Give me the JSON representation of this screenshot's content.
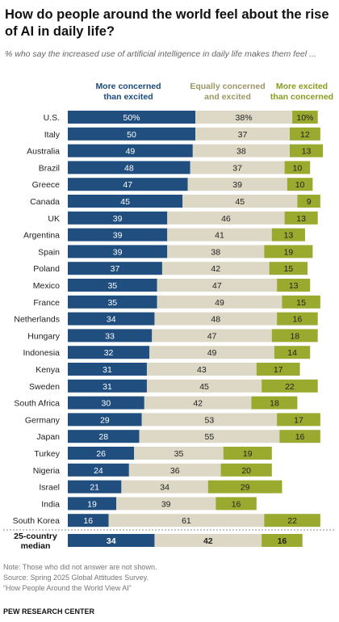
{
  "header": {
    "title": "How do people around the world feel about the rise of AI in daily life?",
    "subtitle": "% who say the increased use of artificial intelligence in daily life makes them feel ..."
  },
  "legend": {
    "concerned": "More concerned than excited",
    "equal": "Equally concerned and excited",
    "excited": "More excited than concerned"
  },
  "colors": {
    "concerned": "#1f4e7f",
    "equal": "#dcd8c5",
    "excited": "#9aaa2e",
    "divider": "#888888"
  },
  "chart_data": {
    "type": "bar",
    "stacked": true,
    "orientation": "horizontal",
    "categories": [
      "U.S.",
      "Italy",
      "Australia",
      "Brazil",
      "Greece",
      "Canada",
      "UK",
      "Argentina",
      "Spain",
      "Poland",
      "Mexico",
      "France",
      "Netherlands",
      "Hungary",
      "Indonesia",
      "Kenya",
      "Sweden",
      "South Africa",
      "Germany",
      "Japan",
      "Turkey",
      "Nigeria",
      "Israel",
      "India",
      "South Korea"
    ],
    "series": [
      {
        "name": "More concerned than excited",
        "values": [
          50,
          50,
          49,
          48,
          47,
          45,
          39,
          39,
          39,
          37,
          35,
          35,
          34,
          33,
          32,
          31,
          31,
          30,
          29,
          28,
          26,
          24,
          21,
          19,
          16
        ]
      },
      {
        "name": "Equally concerned and excited",
        "values": [
          38,
          37,
          38,
          37,
          39,
          45,
          46,
          41,
          38,
          42,
          47,
          49,
          48,
          47,
          49,
          43,
          45,
          42,
          53,
          55,
          35,
          36,
          34,
          39,
          61
        ]
      },
      {
        "name": "More excited than concerned",
        "values": [
          10,
          12,
          13,
          10,
          10,
          9,
          13,
          13,
          19,
          15,
          13,
          15,
          16,
          18,
          14,
          17,
          22,
          18,
          17,
          16,
          19,
          20,
          29,
          16,
          22
        ]
      }
    ],
    "first_row_value_labels": [
      "50%",
      "38%",
      "10%"
    ],
    "median": {
      "label": "25-country median",
      "values": [
        34,
        42,
        16
      ]
    }
  },
  "notes": {
    "note": "Note: Those who did not answer are not shown.",
    "source": "Source: Spring 2025 Global Attitudes Survey.",
    "report": "“How People Around the World View AI”",
    "org": "PEW RESEARCH CENTER"
  }
}
